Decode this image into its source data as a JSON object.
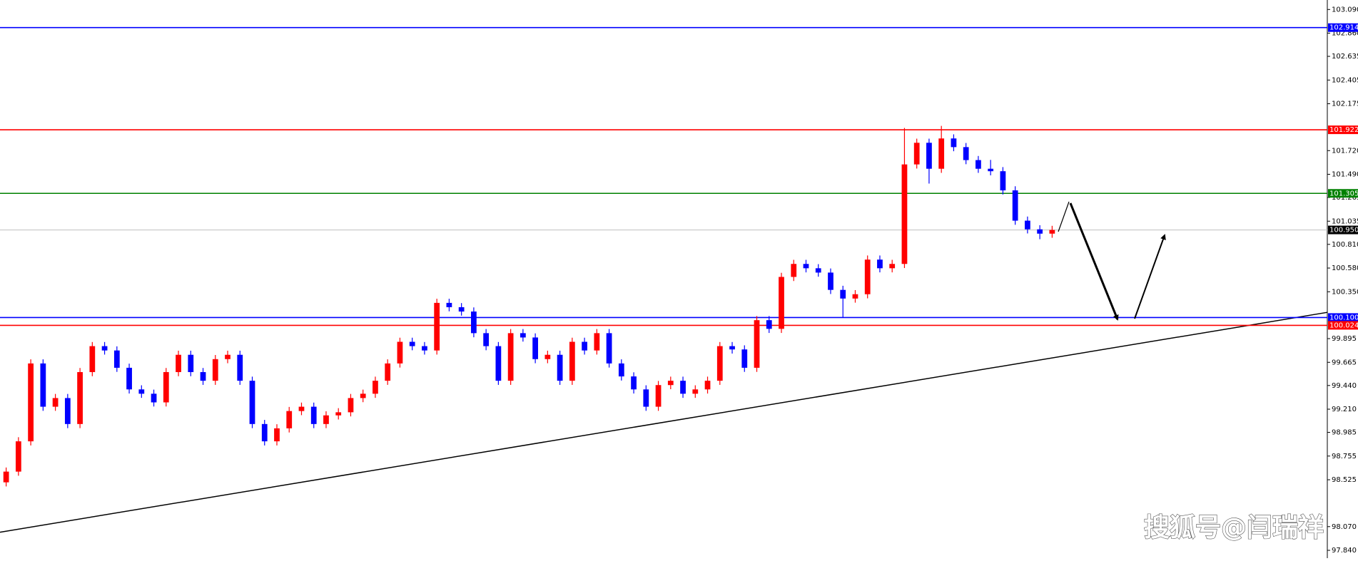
{
  "chart_data": {
    "type": "candlestick",
    "up_color": "#ff0000",
    "down_color": "#0000ff",
    "ylim": [
      97.764,
      103.182
    ],
    "yticks": [
      {
        "value": 103.09,
        "label": "103.090"
      },
      {
        "value": 102.86,
        "label": "102.860"
      },
      102.635,
      102.405,
      102.175,
      {
        "value": 101.72,
        "label": "101.720"
      },
      {
        "value": 101.49,
        "label": "101.490"
      },
      101.265,
      101.035,
      {
        "value": 100.81,
        "label": "100.810"
      },
      {
        "value": 100.58,
        "label": "100.580"
      },
      {
        "value": 100.35,
        "label": "100.350"
      },
      99.895,
      99.665,
      {
        "value": 99.44,
        "label": "99.440"
      },
      {
        "value": 99.21,
        "label": "99.210"
      },
      98.985,
      98.755,
      98.525,
      {
        "value": 98.07,
        "label": "98.070"
      },
      {
        "value": 97.84,
        "label": "97.840"
      }
    ],
    "open": [
      98.5,
      98.604,
      98.898,
      99.654,
      99.234,
      99.318,
      99.066,
      99.57,
      99.822,
      99.78,
      99.612,
      99.402,
      99.36,
      99.276,
      99.57,
      99.738,
      99.57,
      99.486,
      99.696,
      99.738,
      99.486,
      99.066,
      98.898,
      99.024,
      99.192,
      99.234,
      99.066,
      99.15,
      99.18,
      99.318,
      99.36,
      99.486,
      99.654,
      99.864,
      99.822,
      99.78,
      100.242,
      100.2,
      100.158,
      99.948,
      99.822,
      99.486,
      99.948,
      99.906,
      99.696,
      99.738,
      99.486,
      99.864,
      99.78,
      99.948,
      99.654,
      99.528,
      99.402,
      99.234,
      99.444,
      99.486,
      99.36,
      99.402,
      99.486,
      99.822,
      99.79,
      99.612,
      100.074,
      99.99,
      100.494,
      100.62,
      100.578,
      100.536,
      100.368,
      100.284,
      100.326,
      100.662,
      100.578,
      100.62,
      101.586,
      101.796,
      101.544,
      101.838,
      101.754,
      101.628,
      101.544,
      101.52,
      101.334,
      101.04,
      100.956,
      100.914
    ],
    "high": [
      98.644,
      98.938,
      99.694,
      99.694,
      99.358,
      99.358,
      99.61,
      99.862,
      99.862,
      99.82,
      99.652,
      99.442,
      99.4,
      99.61,
      99.778,
      99.778,
      99.61,
      99.736,
      99.778,
      99.778,
      99.526,
      99.106,
      99.064,
      99.232,
      99.274,
      99.274,
      99.19,
      99.22,
      99.358,
      99.4,
      99.526,
      99.694,
      99.904,
      99.904,
      99.862,
      100.282,
      100.282,
      100.24,
      100.198,
      99.988,
      99.862,
      99.988,
      99.988,
      99.946,
      99.778,
      99.778,
      99.904,
      99.904,
      99.988,
      99.988,
      99.694,
      99.568,
      99.442,
      99.484,
      99.526,
      99.526,
      99.442,
      99.526,
      99.862,
      99.862,
      99.83,
      100.114,
      100.114,
      100.534,
      100.66,
      100.66,
      100.618,
      100.576,
      100.408,
      100.366,
      100.702,
      100.702,
      100.66,
      101.94,
      101.836,
      101.836,
      101.96,
      101.878,
      101.794,
      101.668,
      101.63,
      101.56,
      101.374,
      101.08,
      100.996,
      100.99
    ],
    "low": [
      98.46,
      98.564,
      98.858,
      99.194,
      99.194,
      99.026,
      99.026,
      99.53,
      99.74,
      99.572,
      99.362,
      99.32,
      99.236,
      99.236,
      99.53,
      99.53,
      99.446,
      99.446,
      99.656,
      99.446,
      99.026,
      98.858,
      98.858,
      98.984,
      99.152,
      99.026,
      99.026,
      99.11,
      99.14,
      99.278,
      99.32,
      99.446,
      99.614,
      99.782,
      99.74,
      99.74,
      100.16,
      100.118,
      99.908,
      99.782,
      99.446,
      99.446,
      99.866,
      99.656,
      99.656,
      99.446,
      99.446,
      99.74,
      99.74,
      99.614,
      99.488,
      99.362,
      99.194,
      99.194,
      99.404,
      99.32,
      99.32,
      99.362,
      99.446,
      99.75,
      99.572,
      99.572,
      99.95,
      99.95,
      100.454,
      100.538,
      100.496,
      100.328,
      100.1,
      100.244,
      100.286,
      100.538,
      100.538,
      100.58,
      101.546,
      101.4,
      101.504,
      101.714,
      101.588,
      101.504,
      101.48,
      101.294,
      101.0,
      100.916,
      100.86,
      100.874
    ],
    "close": [
      98.604,
      98.898,
      99.654,
      99.234,
      99.318,
      99.066,
      99.57,
      99.822,
      99.78,
      99.612,
      99.402,
      99.36,
      99.276,
      99.57,
      99.738,
      99.57,
      99.486,
      99.696,
      99.738,
      99.486,
      99.066,
      98.898,
      99.024,
      99.192,
      99.234,
      99.066,
      99.15,
      99.18,
      99.318,
      99.36,
      99.486,
      99.654,
      99.864,
      99.822,
      99.78,
      100.242,
      100.2,
      100.158,
      99.948,
      99.822,
      99.486,
      99.948,
      99.906,
      99.696,
      99.738,
      99.486,
      99.864,
      99.78,
      99.948,
      99.654,
      99.528,
      99.402,
      99.234,
      99.444,
      99.486,
      99.36,
      99.402,
      99.486,
      99.822,
      99.79,
      99.612,
      100.074,
      99.99,
      100.494,
      100.62,
      100.578,
      100.536,
      100.368,
      100.284,
      100.326,
      100.662,
      100.578,
      100.62,
      101.586,
      101.796,
      101.544,
      101.838,
      101.754,
      101.628,
      101.544,
      101.52,
      101.334,
      101.04,
      100.956,
      100.914,
      100.95
    ],
    "levels": [
      {
        "value": 102.914,
        "color": "#0000ff"
      },
      {
        "value": 101.922,
        "color": "#ff0000"
      },
      {
        "value": 101.305,
        "color": "#008000"
      },
      {
        "value": 100.95,
        "label": "100.950",
        "color": "#000000"
      },
      {
        "value": 100.1,
        "label": "100.100",
        "color": "#0000ff"
      },
      {
        "value": 100.024,
        "color": "#ff0000"
      }
    ],
    "trendline": [
      98.016,
      100.15
    ],
    "watermark": "搜狐号@闫瑞祥"
  }
}
